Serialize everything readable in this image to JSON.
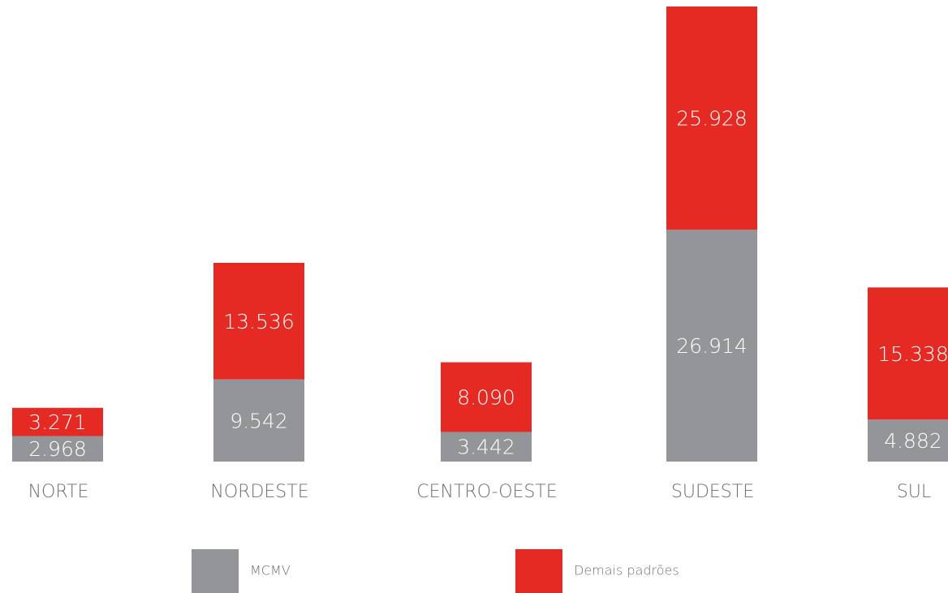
{
  "chart_data": {
    "type": "stacked-bar",
    "categories": [
      "NORTE",
      "NORDESTE",
      "CENTRO-OESTE",
      "SUDESTE",
      "SUL"
    ],
    "series": [
      {
        "name": "MCMV",
        "color": "#939598",
        "values": [
          2968,
          9542,
          3442,
          26914,
          4882
        ],
        "value_labels": [
          "2.968",
          "9.542",
          "3.442",
          "26.914",
          "4.882"
        ]
      },
      {
        "name": "Demais padrões",
        "color": "#e52a24",
        "values": [
          3271,
          13536,
          8090,
          25928,
          15338
        ],
        "value_labels": [
          "3.271",
          "13.536",
          "8.090",
          "25.928",
          "15.338"
        ]
      }
    ]
  }
}
